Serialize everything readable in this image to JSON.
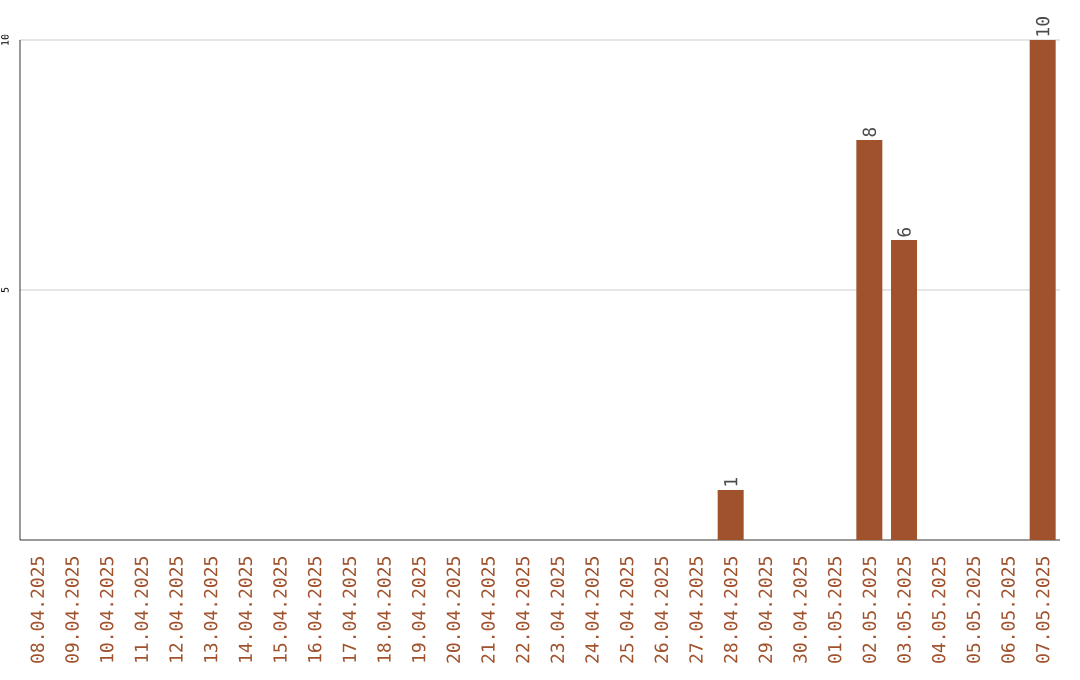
{
  "chart_data": {
    "type": "bar",
    "categories": [
      "08.04.2025",
      "09.04.2025",
      "10.04.2025",
      "11.04.2025",
      "12.04.2025",
      "13.04.2025",
      "14.04.2025",
      "15.04.2025",
      "16.04.2025",
      "17.04.2025",
      "18.04.2025",
      "19.04.2025",
      "20.04.2025",
      "21.04.2025",
      "22.04.2025",
      "23.04.2025",
      "24.04.2025",
      "25.04.2025",
      "26.04.2025",
      "27.04.2025",
      "28.04.2025",
      "29.04.2025",
      "30.04.2025",
      "01.05.2025",
      "02.05.2025",
      "03.05.2025",
      "04.05.2025",
      "05.05.2025",
      "06.05.2025",
      "07.05.2025"
    ],
    "values": [
      0,
      0,
      0,
      0,
      0,
      0,
      0,
      0,
      0,
      0,
      0,
      0,
      0,
      0,
      0,
      0,
      0,
      0,
      0,
      0,
      1,
      0,
      0,
      0,
      8,
      6,
      0,
      0,
      0,
      10
    ],
    "value_labels": [
      null,
      null,
      null,
      null,
      null,
      null,
      null,
      null,
      null,
      null,
      null,
      null,
      null,
      null,
      null,
      null,
      null,
      null,
      null,
      null,
      "1",
      null,
      null,
      null,
      "8",
      "6",
      null,
      null,
      null,
      "10"
    ],
    "color": "#a0522d",
    "ylim": [
      0,
      10
    ],
    "yticks": [
      5,
      10
    ],
    "grid": "y"
  }
}
